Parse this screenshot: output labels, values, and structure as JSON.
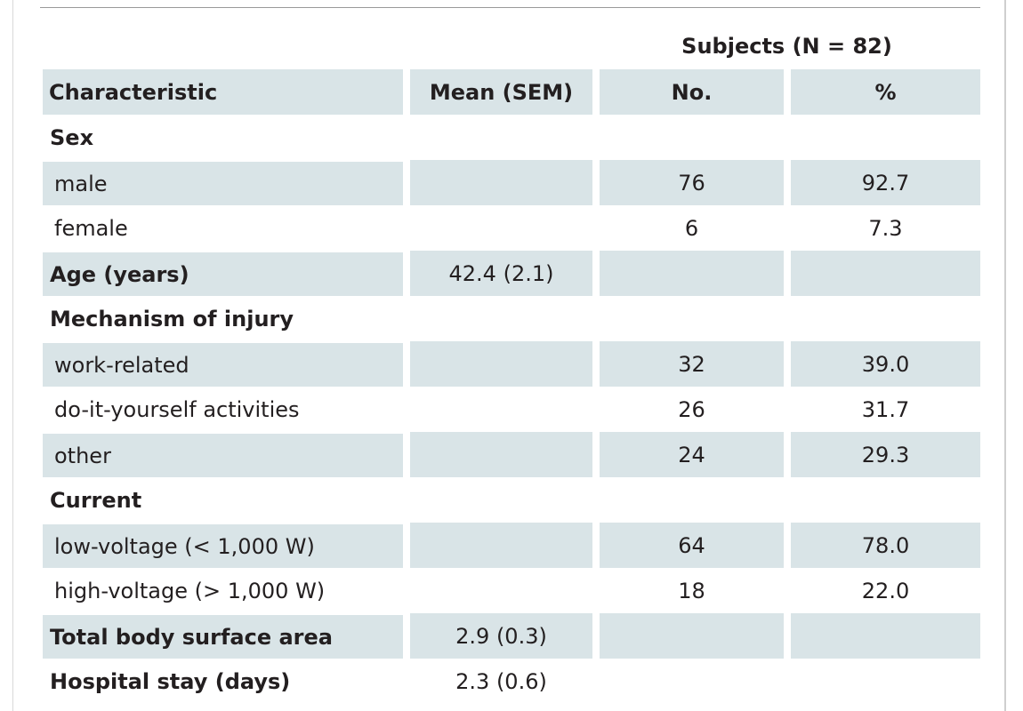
{
  "table": {
    "group_header": "Subjects (N = 82)",
    "columns": [
      "Characteristic",
      "Mean (SEM)",
      "No.",
      "%"
    ],
    "rows": [
      {
        "label": "Sex",
        "mean": "",
        "no": "",
        "pct": ""
      },
      {
        "label": "male",
        "mean": "",
        "no": "76",
        "pct": "92.7"
      },
      {
        "label": "female",
        "mean": "",
        "no": "6",
        "pct": "7.3"
      },
      {
        "label": "Age (years)",
        "mean": "42.4 (2.1)",
        "no": "",
        "pct": ""
      },
      {
        "label": "Mechanism of injury",
        "mean": "",
        "no": "",
        "pct": ""
      },
      {
        "label": "work-related",
        "mean": "",
        "no": "32",
        "pct": "39.0"
      },
      {
        "label": "do-it-yourself activities",
        "mean": "",
        "no": "26",
        "pct": "31.7"
      },
      {
        "label": "other",
        "mean": "",
        "no": "24",
        "pct": "29.3"
      },
      {
        "label": "Current",
        "mean": "",
        "no": "",
        "pct": ""
      },
      {
        "label": "low-voltage (< 1,000 W)",
        "mean": "",
        "no": "64",
        "pct": "78.0"
      },
      {
        "label": "high-voltage (> 1,000 W)",
        "mean": "",
        "no": "18",
        "pct": "22.0"
      },
      {
        "label": "Total body surface area",
        "mean": "2.9 (0.3)",
        "no": "",
        "pct": ""
      },
      {
        "label": "Hospital stay (days)",
        "mean": "2.3 (0.6)",
        "no": "",
        "pct": ""
      }
    ]
  }
}
